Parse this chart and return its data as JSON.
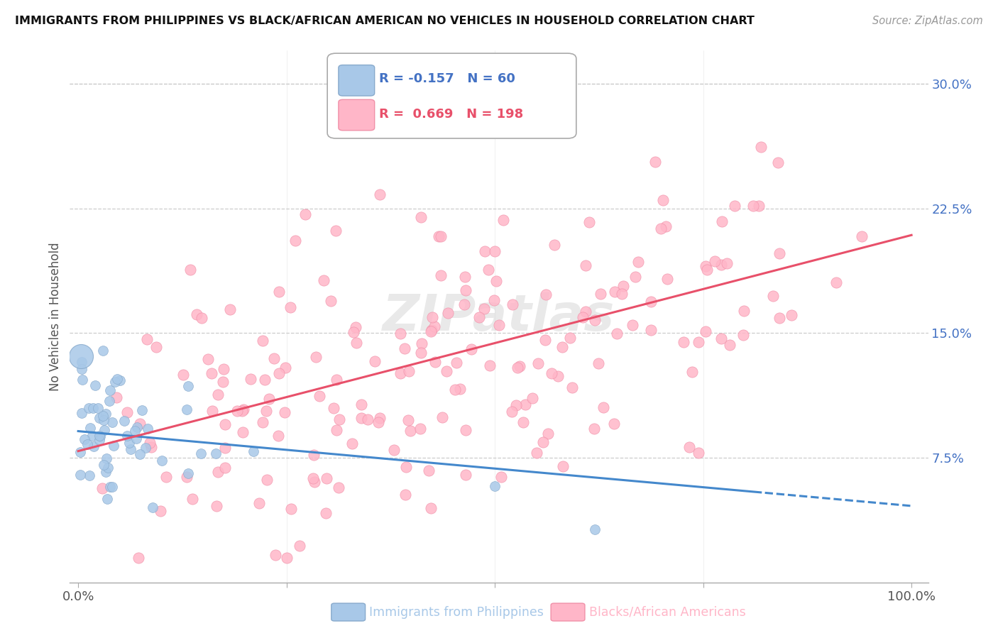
{
  "title": "IMMIGRANTS FROM PHILIPPINES VS BLACK/AFRICAN AMERICAN NO VEHICLES IN HOUSEHOLD CORRELATION CHART",
  "source": "Source: ZipAtlas.com",
  "ylabel": "No Vehicles in Household",
  "blue_color": "#a8c8e8",
  "pink_color": "#ffb6c8",
  "blue_line_color": "#4488cc",
  "pink_line_color": "#e8506a",
  "tick_color_right": "#4472C4",
  "blue_R": -0.157,
  "blue_N": 60,
  "pink_R": 0.669,
  "pink_N": 198,
  "blue_slope": -0.045,
  "blue_intercept": 0.091,
  "pink_slope": 0.13,
  "pink_intercept": 0.079,
  "watermark": "ZIPatlas",
  "legend_label_blue": "Immigrants from Philippines",
  "legend_label_pink": "Blacks/African Americans",
  "ylim_low": 0.0,
  "ylim_high": 0.32,
  "xlim_low": -0.01,
  "xlim_high": 1.02
}
